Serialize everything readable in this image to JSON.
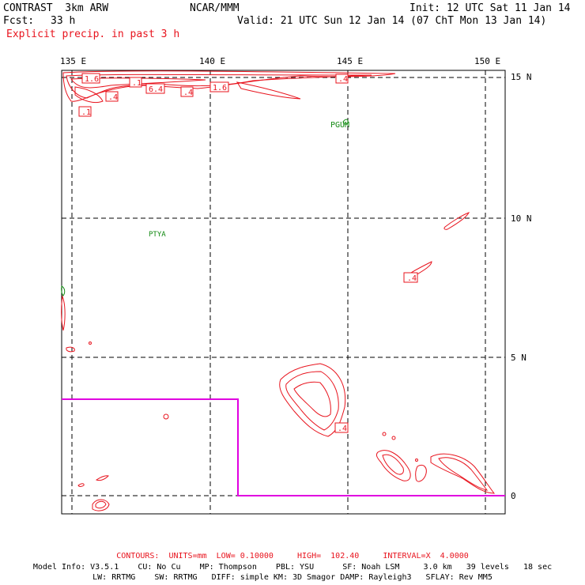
{
  "header": {
    "title": "CONTRAST  3km ARW",
    "fcst_label": "Fcst:",
    "fcst_value": "33 h",
    "field": "Explicit precip. in past 3 h",
    "center": "NCAR/MMM",
    "init": "Init: 12 UTC Sat 11 Jan 14",
    "valid": "Valid: 21 UTC Sun 12 Jan 14 (07 ChT Mon 13 Jan 14)"
  },
  "axes": {
    "lon_labels": [
      "135 E",
      "140 E",
      "145 E",
      "150 E"
    ],
    "lat_labels": [
      "15 N",
      "10 N",
      "5 N",
      "0"
    ]
  },
  "stations": [
    "PGUM",
    "PTYA"
  ],
  "contour_labels": [
    "1.6",
    ".1",
    "6.4",
    ".4",
    "1.6",
    ".4",
    ".4",
    ".1",
    ".4",
    ".4"
  ],
  "footer": {
    "contours": "CONTOURS:  UNITS=mm  LOW= 0.10000     HIGH=  102.40     INTERVAL=X  4.0000",
    "model_line1": "Model Info: V3.5.1    CU: No Cu    MP: Thompson    PBL: YSU      SF: Noah LSM     3.0 km   39 levels   18 sec",
    "model_line2": "LW: RRTMG    SW: RRTMG   DIFF: simple KM: 3D Smagor DAMP: Rayleigh3   SFLAY: Rev MM5"
  },
  "colors": {
    "contour": "#e8141e",
    "station": "#138a13",
    "domain_box": "#e000e0",
    "grid": "#000000"
  }
}
